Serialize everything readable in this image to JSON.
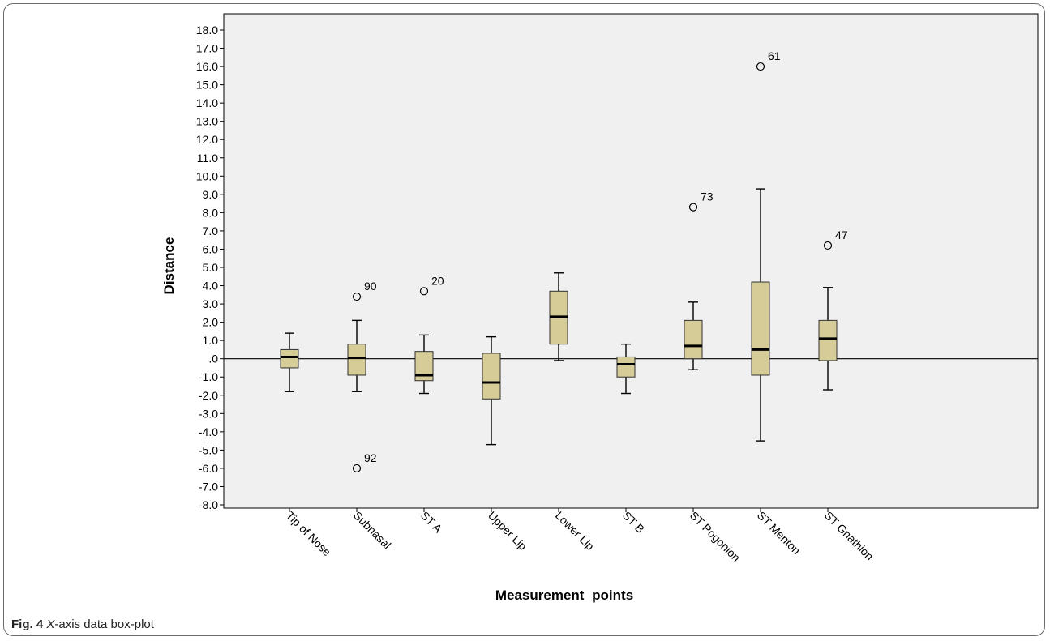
{
  "caption": {
    "label": "Fig. 4",
    "axis_word": "X",
    "rest": "-axis data box-plot"
  },
  "colors": {
    "box_fill": "#d6cc98",
    "box_stroke": "#303030",
    "plot_bg": "#f0f0f0",
    "axis": "#000000"
  },
  "chart_data": {
    "type": "boxplot",
    "xlabel": "Measurement points",
    "ylabel": "Distance",
    "ylim": [
      -8,
      18
    ],
    "ytick_step": 1,
    "yticks_labels": [
      "18.0",
      "17.0",
      "16.0",
      "15.0",
      "14.0",
      "13.0",
      "12.0",
      "11.0",
      "10.0",
      "9.0",
      "8.0",
      "7.0",
      "6.0",
      "5.0",
      "4.0",
      "3.0",
      "2.0",
      "1.0",
      ".0",
      "-1.0",
      "-2.0",
      "-3.0",
      "-4.0",
      "-5.0",
      "-6.0",
      "-7.0",
      "-8.0"
    ],
    "reference_line": 0,
    "categories": [
      "Tip of Nose",
      "Subnasal",
      "ST A",
      "Upper Lip",
      "Lower Lip",
      "ST B",
      "ST Pogonion",
      "ST Menton",
      "ST Gnathion"
    ],
    "boxes": [
      {
        "category": "Tip of Nose",
        "min": -1.8,
        "q1": -0.5,
        "median": 0.1,
        "q3": 0.5,
        "max": 1.4
      },
      {
        "category": "Subnasal",
        "min": -1.8,
        "q1": -0.9,
        "median": 0.05,
        "q3": 0.8,
        "max": 2.1
      },
      {
        "category": "ST A",
        "min": -1.9,
        "q1": -1.2,
        "median": -0.9,
        "q3": 0.4,
        "max": 1.3
      },
      {
        "category": "Upper Lip",
        "min": -4.7,
        "q1": -2.2,
        "median": -1.3,
        "q3": 0.3,
        "max": 1.2
      },
      {
        "category": "Lower Lip",
        "min": -0.1,
        "q1": 0.8,
        "median": 2.3,
        "q3": 3.7,
        "max": 4.7
      },
      {
        "category": "ST B",
        "min": -1.9,
        "q1": -1.0,
        "median": -0.3,
        "q3": 0.1,
        "max": 0.8
      },
      {
        "category": "ST Pogonion",
        "min": -0.6,
        "q1": 0.0,
        "median": 0.7,
        "q3": 2.1,
        "max": 3.1
      },
      {
        "category": "ST Menton",
        "min": -4.5,
        "q1": -0.9,
        "median": 0.5,
        "q3": 4.2,
        "max": 9.3
      },
      {
        "category": "ST Gnathion",
        "min": -1.7,
        "q1": -0.1,
        "median": 1.1,
        "q3": 2.1,
        "max": 3.9
      }
    ],
    "outliers": [
      {
        "category": "Subnasal",
        "value": 3.4,
        "label": "90"
      },
      {
        "category": "Subnasal",
        "value": -6.0,
        "label": "92"
      },
      {
        "category": "ST A",
        "value": 3.7,
        "label": "20"
      },
      {
        "category": "ST Pogonion",
        "value": 8.3,
        "label": "73"
      },
      {
        "category": "ST Menton",
        "value": 16.0,
        "label": "61"
      },
      {
        "category": "ST Gnathion",
        "value": 6.2,
        "label": "47"
      }
    ]
  }
}
